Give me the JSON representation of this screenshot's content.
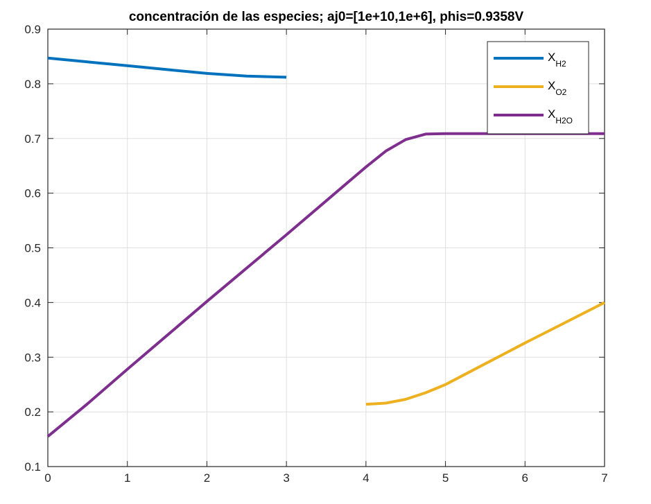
{
  "chart_data": {
    "type": "line",
    "title": "concentración de las especies; aj0=[1e+10,1e+6], phis=0.9358V",
    "xlabel": "",
    "ylabel": "",
    "xlim": [
      0,
      7
    ],
    "ylim": [
      0.1,
      0.9
    ],
    "x_ticks": [
      0,
      1,
      2,
      3,
      4,
      5,
      6,
      7
    ],
    "x_tick_labels": [
      "0",
      "1",
      "2",
      "3",
      "4",
      "5",
      "6",
      "7"
    ],
    "y_ticks": [
      0.1,
      0.2,
      0.3,
      0.4,
      0.5,
      0.6,
      0.7,
      0.8,
      0.9
    ],
    "y_tick_labels": [
      "0.1",
      "0.2",
      "0.3",
      "0.4",
      "0.5",
      "0.6",
      "0.7",
      "0.8",
      "0.9"
    ],
    "grid": true,
    "legend_position": "top-right",
    "series": [
      {
        "name": "X",
        "name_sub": "H2",
        "color": "#0072BD",
        "x": [
          0,
          0.5,
          1,
          1.5,
          2,
          2.5,
          3
        ],
        "y": [
          0.847,
          0.84,
          0.833,
          0.826,
          0.819,
          0.814,
          0.812
        ]
      },
      {
        "name": "X",
        "name_sub": "O2",
        "color": "#EDB120",
        "x": [
          4,
          4.25,
          4.5,
          4.75,
          5,
          5.5,
          6,
          6.5,
          7
        ],
        "y": [
          0.214,
          0.216,
          0.223,
          0.235,
          0.25,
          0.288,
          0.326,
          0.363,
          0.4
        ]
      },
      {
        "name": "X",
        "name_sub": "H2O",
        "color": "#7E2F8E",
        "x": [
          0,
          0.5,
          1,
          1.5,
          2,
          2.5,
          3,
          3.5,
          4,
          4.25,
          4.5,
          4.75,
          5,
          5.5,
          6,
          6.5,
          7
        ],
        "y": [
          0.155,
          0.215,
          0.278,
          0.34,
          0.402,
          0.463,
          0.524,
          0.586,
          0.648,
          0.677,
          0.698,
          0.708,
          0.709,
          0.709,
          0.709,
          0.709,
          0.709
        ]
      }
    ]
  }
}
